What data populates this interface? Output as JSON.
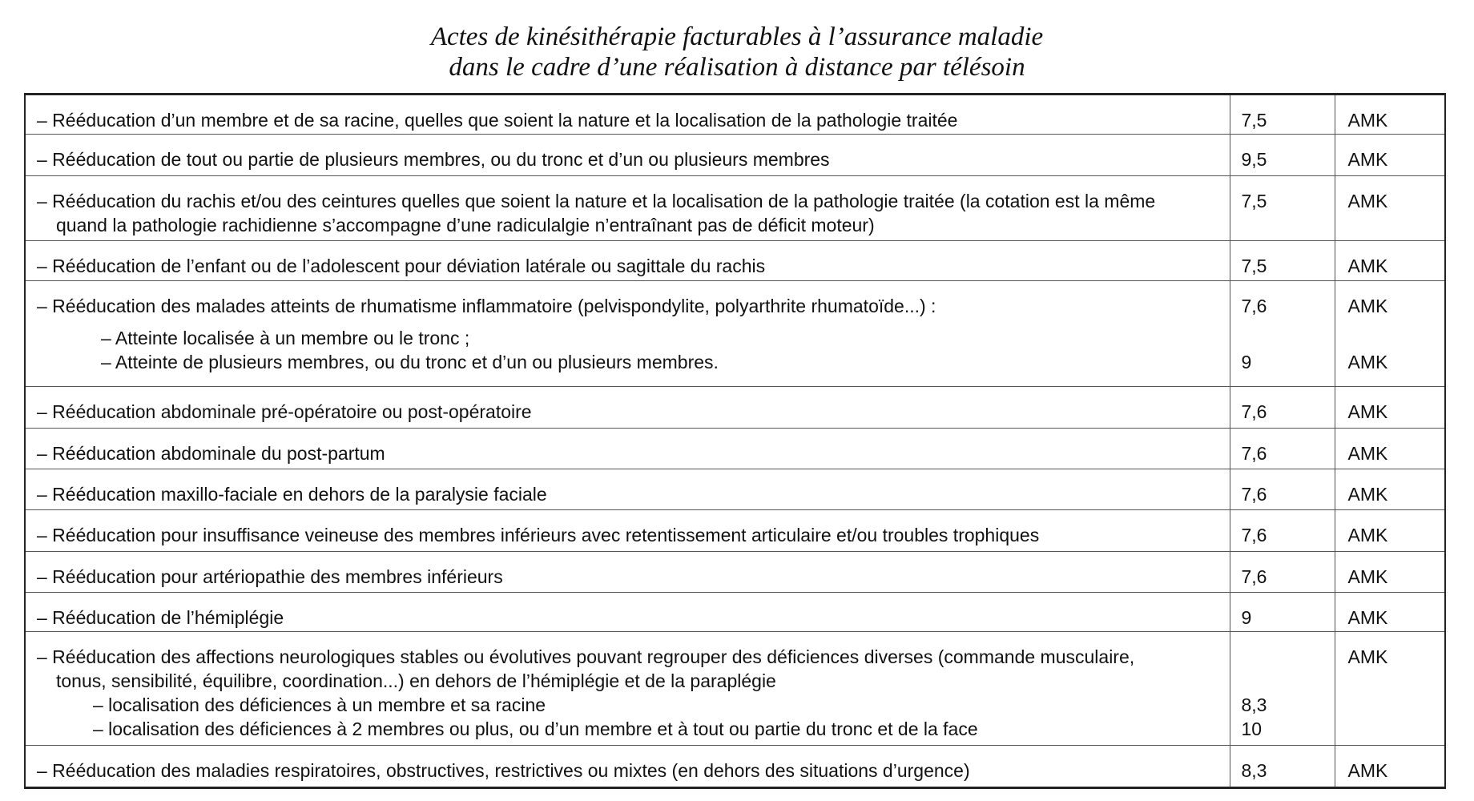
{
  "title": {
    "line1": "Actes de kinésithérapie facturables à l’assurance maladie",
    "line2": "dans le cadre d’une réalisation à distance par télésoin"
  },
  "rows": [
    {
      "lines": [
        "– Rééducation d’un membre et de sa racine, quelles que soient la nature et la localisation de la pathologie traitée"
      ],
      "value": "7,5",
      "unit": "AMK"
    },
    {
      "lines": [
        "– Rééducation de tout ou partie de plusieurs membres, ou du tronc et d’un ou plusieurs membres"
      ],
      "value": "9,5",
      "unit": "AMK"
    },
    {
      "lines": [
        "– Rééducation du rachis et/ou des ceintures quelles que soient la nature et la localisation de la pathologie traitée (la cotation est la même",
        "quand la pathologie rachidienne s’accompagne d’une radiculalgie n’entraînant pas de déficit moteur)"
      ],
      "value": "7,5",
      "unit": "AMK"
    },
    {
      "lines": [
        "– Rééducation de l’enfant ou de l’adolescent pour déviation latérale ou sagittale du rachis"
      ],
      "value": "7,5",
      "unit": "AMK"
    },
    {
      "lines": [
        "– Rééducation des malades atteints de rhumatisme inflammatoire (pelvispondylite, polyarthrite rhumatoïde...) :"
      ],
      "subs": [
        "–  Atteinte localisée à un membre ou le tronc ;",
        "–  Atteinte de plusieurs membres, ou du tronc et d’un ou plusieurs membres."
      ],
      "value": "7,6",
      "value2": "9",
      "unit": "AMK",
      "unit2": "AMK"
    },
    {
      "lines": [
        "– Rééducation abdominale pré-opératoire ou post-opératoire"
      ],
      "value": "7,6",
      "unit": "AMK"
    },
    {
      "lines": [
        "– Rééducation abdominale du post-partum"
      ],
      "value": "7,6",
      "unit": "AMK"
    },
    {
      "lines": [
        "– Rééducation maxillo-faciale en dehors de la paralysie faciale"
      ],
      "value": "7,6",
      "unit": "AMK"
    },
    {
      "lines": [
        "– Rééducation pour insuffisance veineuse des membres inférieurs avec retentissement articulaire et/ou troubles trophiques"
      ],
      "value": "7,6",
      "unit": "AMK"
    },
    {
      "lines": [
        "– Rééducation pour artériopathie des membres inférieurs"
      ],
      "value": "7,6",
      "unit": "AMK"
    },
    {
      "lines": [
        "– Rééducation de l’hémiplégie"
      ],
      "value": "9",
      "unit": "AMK"
    },
    {
      "lines": [
        "– Rééducation des affections neurologiques stables ou évolutives pouvant regrouper des déficiences diverses (commande musculaire,",
        "tonus, sensibilité, équilibre, coordination...) en dehors de l’hémiplégie et de la paraplégie"
      ],
      "subs": [
        "–  localisation des déficiences à un membre et sa racine",
        "–  localisation des déficiences à 2 membres ou plus, ou d’un membre et à tout ou partie du tronc et de la face"
      ],
      "values_sub": [
        "8,3",
        "10"
      ],
      "unit": "AMK"
    },
    {
      "lines": [
        "– Rééducation des maladies respiratoires, obstructives, restrictives ou mixtes (en dehors des situations d’urgence)"
      ],
      "value": "8,3",
      "unit": "AMK"
    }
  ]
}
